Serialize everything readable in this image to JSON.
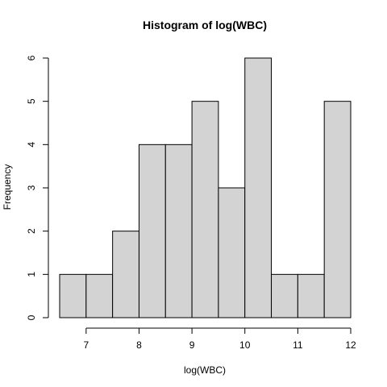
{
  "chart_data": {
    "type": "bar",
    "title": "Histogram of log(WBC)",
    "xlabel": "log(WBC)",
    "ylabel": "Frequency",
    "bin_edges": [
      6.5,
      7.0,
      7.5,
      8.0,
      8.5,
      9.0,
      9.5,
      10.0,
      10.5,
      11.0,
      11.5,
      12.0
    ],
    "values": [
      1,
      1,
      2,
      4,
      4,
      5,
      3,
      6,
      1,
      1,
      5
    ],
    "xlim": [
      6.5,
      12.0
    ],
    "ylim": [
      0,
      6
    ],
    "x_ticks": [
      "7",
      "8",
      "9",
      "10",
      "11",
      "12"
    ],
    "y_ticks": [
      "0",
      "1",
      "2",
      "3",
      "4",
      "5",
      "6"
    ],
    "bar_color": "#d3d3d3",
    "edge_color": "#000000",
    "grid": false,
    "legend": "none"
  }
}
